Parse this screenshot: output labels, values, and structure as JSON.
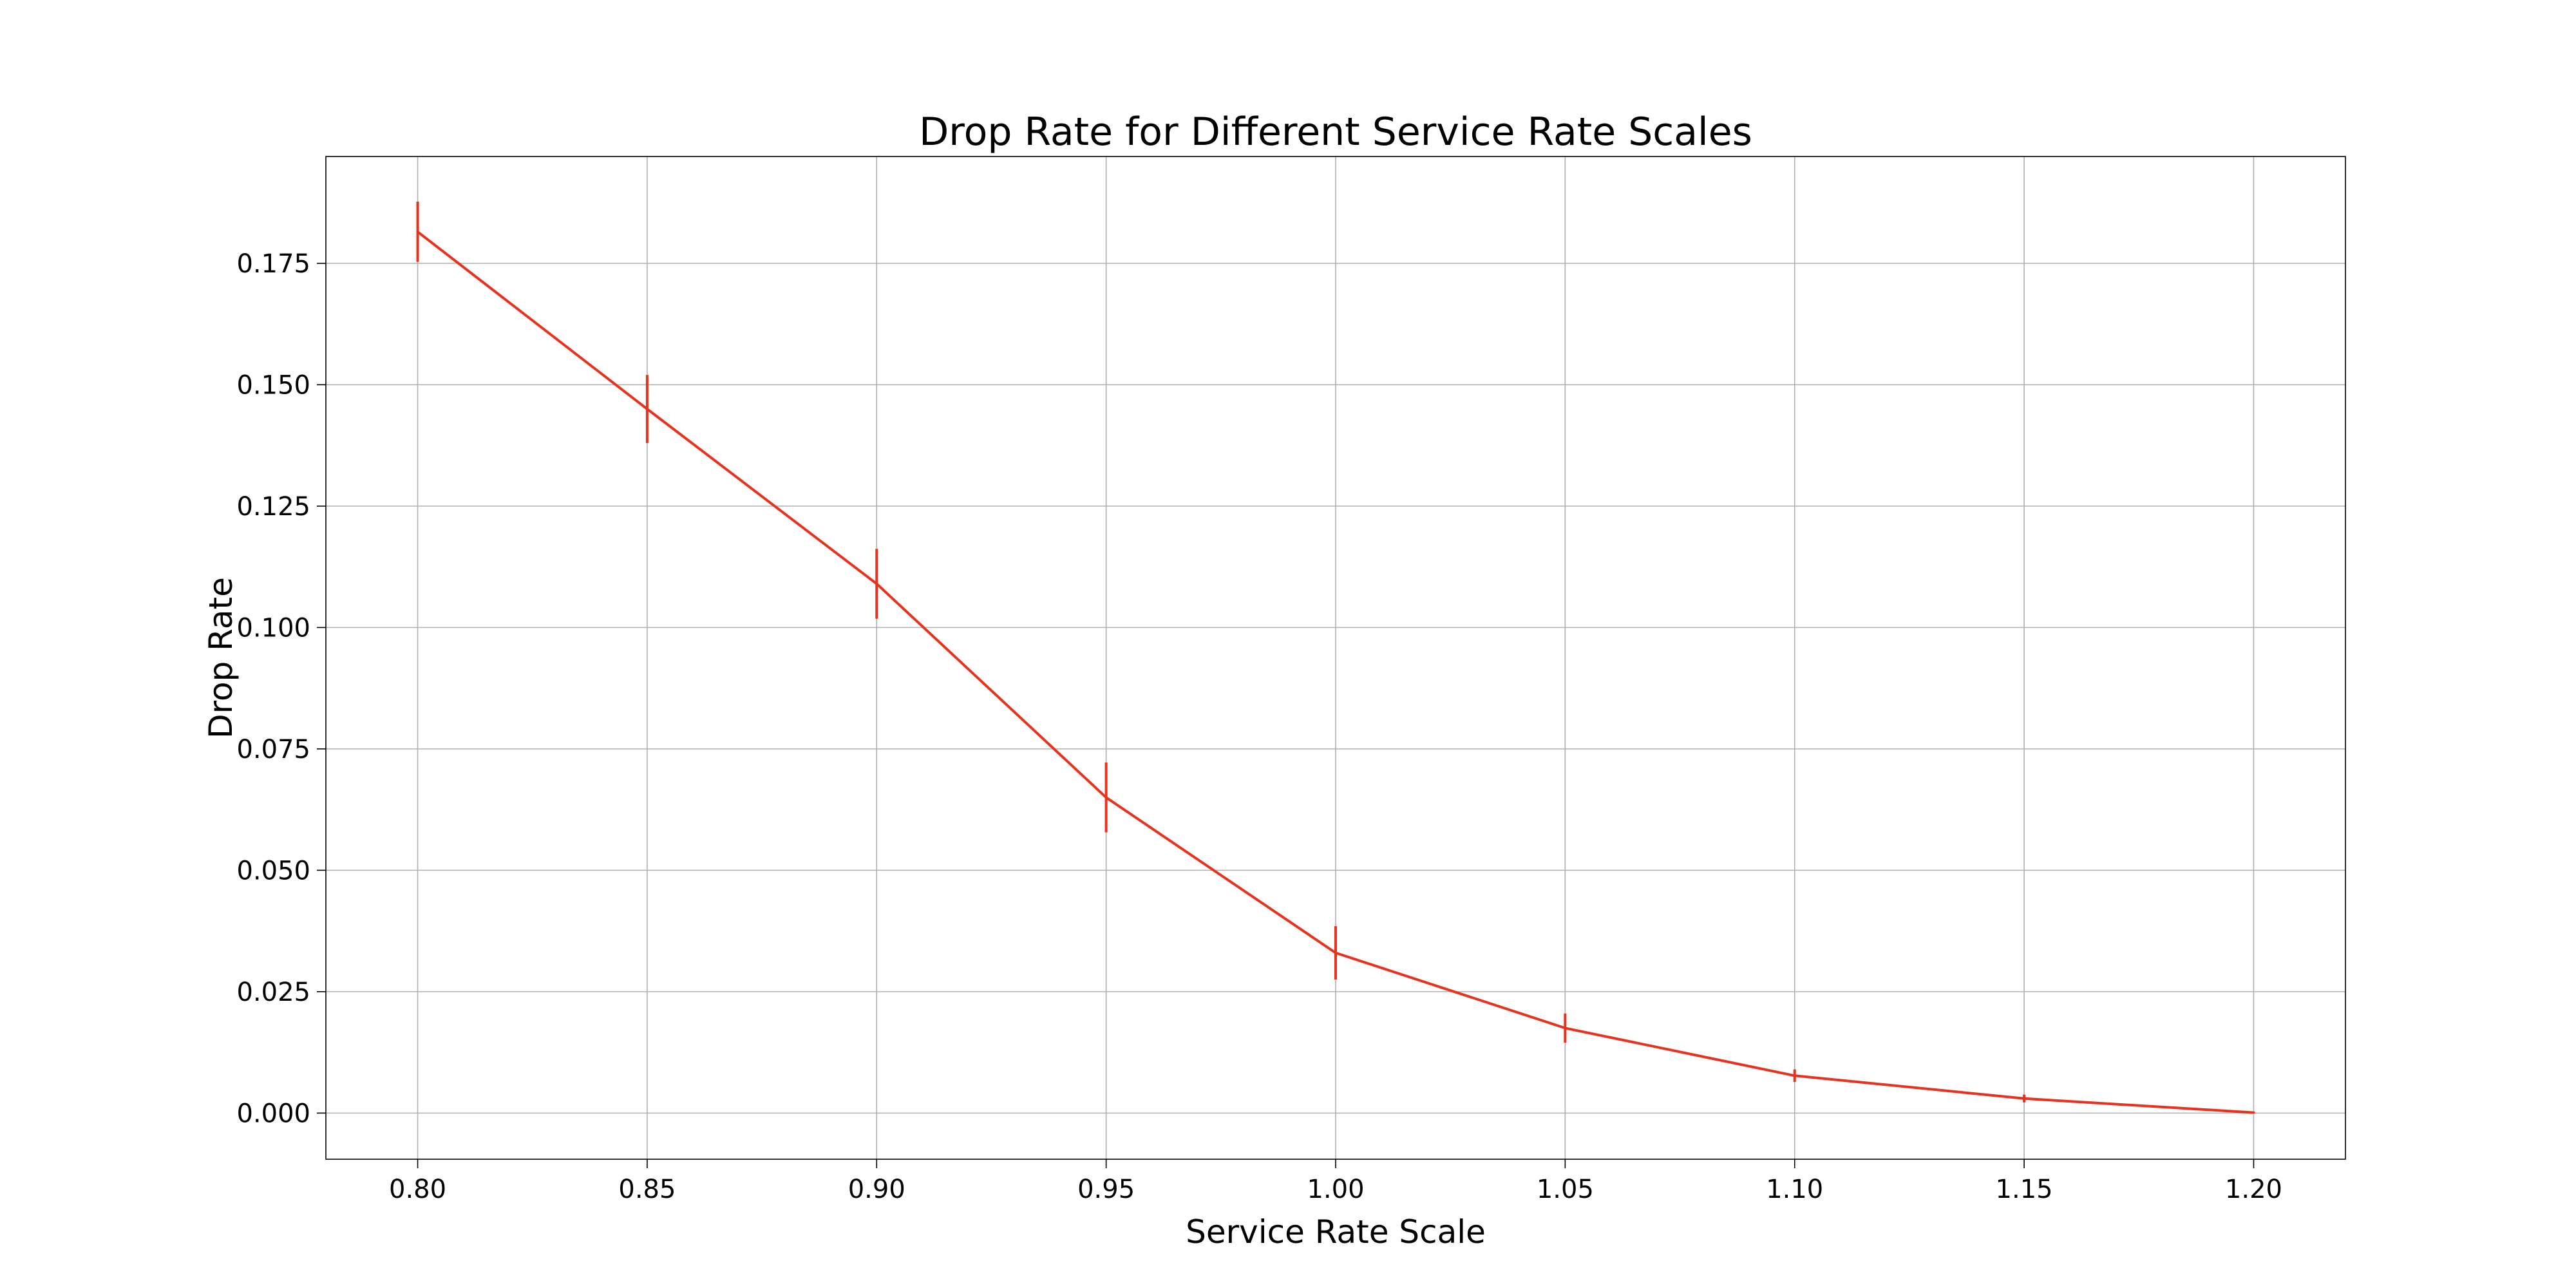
{
  "chart_data": {
    "type": "line",
    "title": "Drop Rate for Different Service Rate Scales",
    "xlabel": "Service Rate Scale",
    "ylabel": "Drop Rate",
    "x": [
      0.8,
      0.85,
      0.9,
      0.95,
      1.0,
      1.05,
      1.1,
      1.15,
      1.2
    ],
    "x_tick_labels": [
      "0.80",
      "0.85",
      "0.90",
      "0.95",
      "1.00",
      "1.05",
      "1.10",
      "1.15",
      "1.20"
    ],
    "y_ticks": [
      0.0,
      0.025,
      0.05,
      0.075,
      0.1,
      0.125,
      0.15,
      0.175
    ],
    "y_tick_labels": [
      "0.000",
      "0.025",
      "0.050",
      "0.075",
      "0.100",
      "0.125",
      "0.150",
      "0.175"
    ],
    "xlim": [
      0.78,
      1.22
    ],
    "ylim": [
      -0.0095,
      0.197
    ],
    "grid": true,
    "series": [
      {
        "color": "#e8321e",
        "values": [
          0.1815,
          0.145,
          0.109,
          0.065,
          0.033,
          0.0175,
          0.0077,
          0.003,
          0.0001
        ],
        "errors": [
          0.0062,
          0.007,
          0.0072,
          0.0072,
          0.0055,
          0.003,
          0.0013,
          0.0008,
          0.0002
        ]
      }
    ]
  }
}
